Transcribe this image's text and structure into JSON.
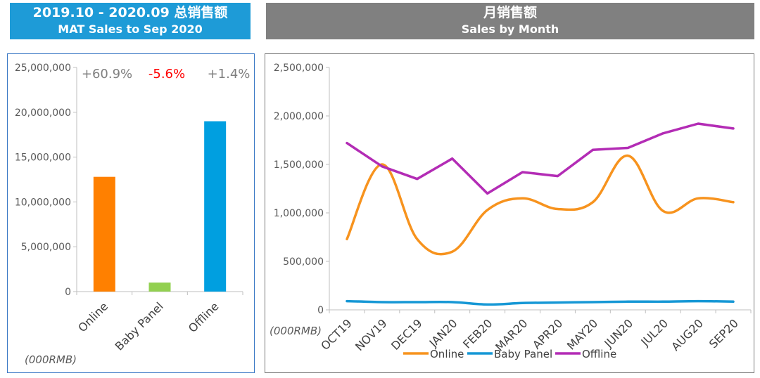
{
  "header_left": {
    "line1": "2019.10 - 2020.09 总销售额",
    "line2": "MAT Sales to Sep 2020"
  },
  "header_right": {
    "line1": "月销售额",
    "line2": "Sales by Month"
  },
  "colors": {
    "header_left_bg": "#1e9bd7",
    "header_right_bg": "#808080",
    "online": "#ff8000",
    "baby_panel": "#92d050",
    "offline": "#009fe0",
    "line_online": "#f7931e",
    "line_baby_panel": "#1597d5",
    "line_offline": "#b32cb5",
    "negative": "#ff0000",
    "neutral": "#7f7f7f"
  },
  "chart_data": [
    {
      "type": "bar",
      "title": "MAT Sales to Sep 2020",
      "categories": [
        "Online",
        "Baby Panel",
        "Offline"
      ],
      "values": [
        12800000,
        1000000,
        19000000
      ],
      "ylim": [
        0,
        25000000
      ],
      "yticks": [
        0,
        5000000,
        10000000,
        15000000,
        20000000,
        25000000
      ],
      "ytick_labels": [
        "0",
        "5,000,000",
        "10,000,000",
        "15,000,000",
        "20,000,000",
        "25,000,000"
      ],
      "ylabel": "(000RMB)",
      "annotations": [
        "+60.9%",
        "-5.6%",
        "+1.4%"
      ]
    },
    {
      "type": "line",
      "title": "Sales by Month",
      "categories": [
        "OCT19",
        "NOV19",
        "DEC19",
        "JAN20",
        "FEB20",
        "MAR20",
        "APR20",
        "MAY20",
        "JUN20",
        "JUL20",
        "AUG20",
        "SEP20"
      ],
      "series": [
        {
          "name": "Online",
          "values": [
            730000,
            1500000,
            730000,
            600000,
            1030000,
            1150000,
            1040000,
            1110000,
            1590000,
            1020000,
            1150000,
            1110000
          ]
        },
        {
          "name": "Baby Panel",
          "values": [
            90000,
            80000,
            80000,
            80000,
            55000,
            70000,
            75000,
            80000,
            85000,
            85000,
            90000,
            85000
          ]
        },
        {
          "name": "Offline",
          "values": [
            1720000,
            1480000,
            1350000,
            1560000,
            1200000,
            1420000,
            1380000,
            1650000,
            1670000,
            1820000,
            1920000,
            1870000
          ]
        }
      ],
      "ylim": [
        0,
        2500000
      ],
      "yticks": [
        0,
        500000,
        1000000,
        1500000,
        2000000,
        2500000
      ],
      "ytick_labels": [
        "0",
        "500,000",
        "1,000,000",
        "1,500,000",
        "2,000,000",
        "2,500,000"
      ],
      "ylabel": "(000RMB)",
      "legend": "bottom"
    }
  ]
}
